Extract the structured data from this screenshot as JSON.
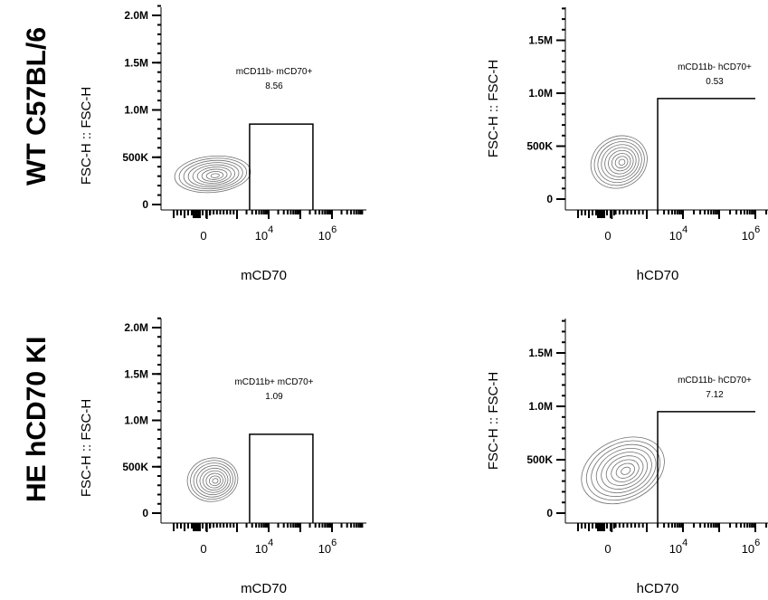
{
  "row_labels": [
    "WT C57BL/6",
    "HE hCD70 KI"
  ],
  "chart_data": [
    {
      "type": "contour",
      "row": "WT C57BL/6",
      "xlabel": "mCD70",
      "ylabel": "FSC-H :: FSC-H",
      "x_scale": "biexponential",
      "x_ticks": [
        {
          "label": "0",
          "base": "0",
          "exp": ""
        },
        {
          "label": "10^4",
          "base": "10",
          "exp": "4"
        },
        {
          "label": "10^6",
          "base": "10",
          "exp": "6"
        }
      ],
      "y_ticks": [
        "0",
        "500K",
        "1.0M",
        "1.5M",
        "2.0M"
      ],
      "y_tick_values": [
        0,
        500000,
        1000000,
        1500000,
        2000000
      ],
      "ylim": [
        0,
        2100000
      ],
      "gate": {
        "name": "mCD11b- mCD70+",
        "percent": "8.56",
        "x_range": [
          2500,
          250000
        ],
        "y_range": [
          0,
          850000
        ]
      },
      "population_center": {
        "x": 0,
        "y": 320000
      }
    },
    {
      "type": "contour",
      "row": "WT C57BL/6",
      "xlabel": "hCD70",
      "ylabel": "FSC-H :: FSC-H",
      "x_scale": "biexponential",
      "x_ticks": [
        {
          "label": "0",
          "base": "0",
          "exp": ""
        },
        {
          "label": "10^4",
          "base": "10",
          "exp": "4"
        },
        {
          "label": "10^6",
          "base": "10",
          "exp": "6"
        }
      ],
      "y_ticks": [
        "0",
        "500K",
        "1.0M",
        "1.5M"
      ],
      "y_tick_values": [
        0,
        500000,
        1000000,
        1500000
      ],
      "ylim": [
        0,
        1850000
      ],
      "gate": {
        "name": "mCD11b- hCD70+",
        "percent": "0.53",
        "x_range": [
          2000,
          1000000
        ],
        "y_range": [
          0,
          950000
        ]
      },
      "population_center": {
        "x": 100,
        "y": 350000
      }
    },
    {
      "type": "contour",
      "row": "HE hCD70 KI",
      "xlabel": "mCD70",
      "ylabel": "FSC-H :: FSC-H",
      "x_scale": "biexponential",
      "x_ticks": [
        {
          "label": "0",
          "base": "0",
          "exp": ""
        },
        {
          "label": "10^4",
          "base": "10",
          "exp": "4"
        },
        {
          "label": "10^6",
          "base": "10",
          "exp": "6"
        }
      ],
      "y_ticks": [
        "0",
        "500K",
        "1.0M",
        "1.5M",
        "2.0M"
      ],
      "y_tick_values": [
        0,
        500000,
        1000000,
        1500000,
        2000000
      ],
      "ylim": [
        0,
        2100000
      ],
      "gate": {
        "name": "mCD11b+ mCD70+",
        "percent": "1.09",
        "x_range": [
          2500,
          250000
        ],
        "y_range": [
          0,
          850000
        ]
      },
      "population_center": {
        "x": 0,
        "y": 360000
      }
    },
    {
      "type": "contour",
      "row": "HE hCD70 KI",
      "xlabel": "hCD70",
      "ylabel": "FSC-H :: FSC-H",
      "x_scale": "biexponential",
      "x_ticks": [
        {
          "label": "0",
          "base": "0",
          "exp": ""
        },
        {
          "label": "10^4",
          "base": "10",
          "exp": "4"
        },
        {
          "label": "10^6",
          "base": "10",
          "exp": "6"
        }
      ],
      "y_ticks": [
        "0",
        "500K",
        "1.0M",
        "1.5M"
      ],
      "y_tick_values": [
        0,
        500000,
        1000000,
        1500000
      ],
      "ylim": [
        0,
        1850000
      ],
      "gate": {
        "name": "mCD11b- hCD70+",
        "percent": "7.12",
        "x_range": [
          2000,
          1000000
        ],
        "y_range": [
          0,
          950000
        ]
      },
      "population_center": {
        "x": 200,
        "y": 400000
      }
    }
  ],
  "colors": {
    "contour": "#707070",
    "axis": "#000000"
  }
}
